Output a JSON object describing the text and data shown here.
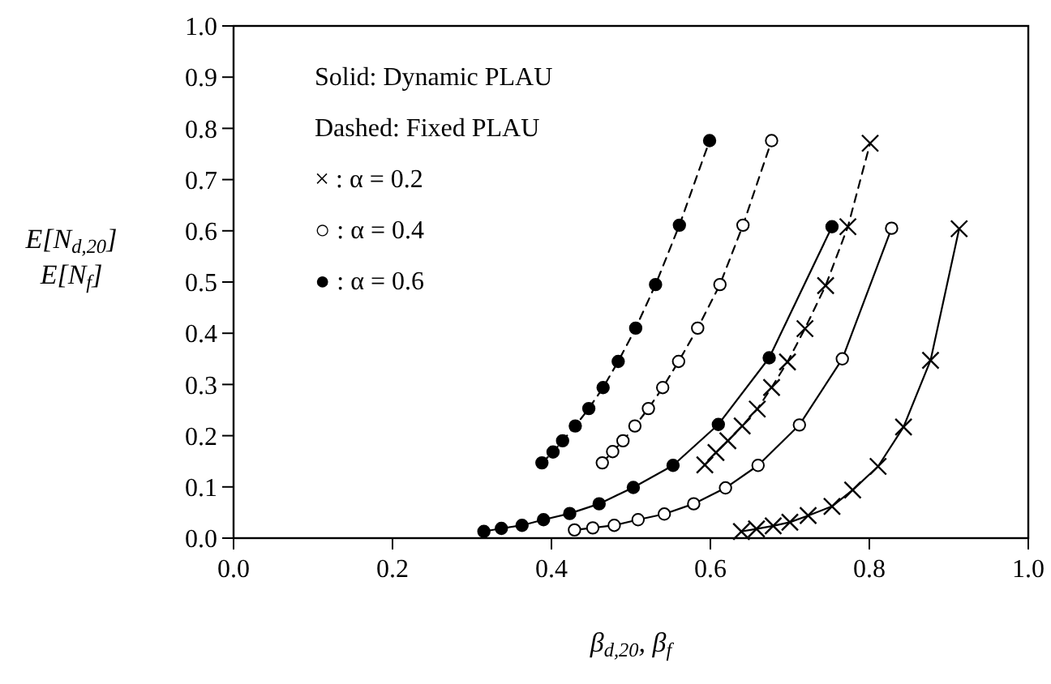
{
  "chart_data": {
    "type": "line",
    "xlabel": "β$_{d,20}$, β$_{f}$",
    "ylabel": "E[N$_{d,20}$]\nE[N$_{f}$]",
    "xlim": [
      0,
      1
    ],
    "xticks": [
      {
        "value": 0,
        "label": "0.0"
      },
      {
        "value": 0.2,
        "label": "0.2"
      },
      {
        "value": 0.4,
        "label": "0.4"
      },
      {
        "value": 0.6,
        "label": "0.6"
      },
      {
        "value": 0.8,
        "label": "0.8"
      },
      {
        "value": 1,
        "label": "1.0"
      }
    ],
    "ylim": [
      0,
      1
    ],
    "yticks": [
      {
        "value": 0,
        "label": "0.0"
      },
      {
        "value": 0.1,
        "label": "0.1"
      },
      {
        "value": 0.2,
        "label": "0.2"
      },
      {
        "value": 0.3,
        "label": "0.3"
      },
      {
        "value": 0.4,
        "label": "0.4"
      },
      {
        "value": 0.5,
        "label": "0.5"
      },
      {
        "value": 0.6,
        "label": "0.6"
      },
      {
        "value": 0.7,
        "label": "0.7"
      },
      {
        "value": 0.8,
        "label": "0.8"
      },
      {
        "value": 0.9,
        "label": "0.9"
      },
      {
        "value": 1,
        "label": "1.0"
      }
    ],
    "grid": false,
    "annotations": [
      "Solid: Dynamic PLAU",
      "Dashed: Fixed PLAU",
      "× : α = 0.2",
      "○ : α = 0.4",
      "● : α = 0.6"
    ],
    "series": [
      {
        "color": "#000000",
        "marker": "cross",
        "line_style": "solid",
        "x": [
          0.639,
          0.658,
          0.679,
          0.7,
          0.723,
          0.753,
          0.779,
          0.811,
          0.843,
          0.877,
          0.913
        ],
        "values": [
          0.013,
          0.018,
          0.024,
          0.031,
          0.044,
          0.062,
          0.094,
          0.14,
          0.217,
          0.347,
          0.604
        ]
      },
      {
        "color": "#000000",
        "colors": [
          "#ffffff",
          "#ffffff",
          "#ffffff",
          "#ffffff",
          "#ffffff",
          "#ffffff",
          "#ffffff",
          "#ffffff",
          "#ffffff",
          "#ffffff",
          "#ffffff"
        ],
        "marker": "circle",
        "line_style": "solid",
        "x": [
          0.429,
          0.452,
          0.479,
          0.509,
          0.542,
          0.579,
          0.619,
          0.66,
          0.712,
          0.766,
          0.828
        ],
        "values": [
          0.016,
          0.02,
          0.025,
          0.036,
          0.047,
          0.067,
          0.098,
          0.142,
          0.221,
          0.35,
          0.605
        ]
      },
      {
        "color": "#000000",
        "marker": "circle",
        "line_style": "solid",
        "x": [
          0.315,
          0.337,
          0.363,
          0.39,
          0.423,
          0.46,
          0.503,
          0.553,
          0.61,
          0.674,
          0.753
        ],
        "values": [
          0.013,
          0.019,
          0.025,
          0.036,
          0.048,
          0.067,
          0.099,
          0.142,
          0.222,
          0.352,
          0.608
        ]
      },
      {
        "color": "#000000",
        "marker": "cross",
        "line_style": "dashed",
        "x": [
          0.593,
          0.607,
          0.622,
          0.64,
          0.659,
          0.677,
          0.697,
          0.719,
          0.745,
          0.773,
          0.801
        ],
        "values": [
          0.143,
          0.167,
          0.19,
          0.219,
          0.252,
          0.294,
          0.344,
          0.409,
          0.493,
          0.608,
          0.771
        ]
      },
      {
        "color": "#000000",
        "colors": [
          "#ffffff",
          "#ffffff",
          "#ffffff",
          "#ffffff",
          "#ffffff",
          "#ffffff",
          "#ffffff",
          "#ffffff",
          "#ffffff",
          "#ffffff",
          "#ffffff"
        ],
        "marker": "circle",
        "line_style": "dashed",
        "x": [
          0.464,
          0.477,
          0.49,
          0.505,
          0.522,
          0.54,
          0.56,
          0.584,
          0.612,
          0.641,
          0.677
        ],
        "values": [
          0.147,
          0.169,
          0.19,
          0.219,
          0.253,
          0.294,
          0.345,
          0.41,
          0.495,
          0.611,
          0.776
        ]
      },
      {
        "color": "#000000",
        "marker": "circle",
        "line_style": "dashed",
        "x": [
          0.388,
          0.402,
          0.414,
          0.43,
          0.447,
          0.465,
          0.484,
          0.506,
          0.531,
          0.561,
          0.599
        ],
        "values": [
          0.147,
          0.168,
          0.19,
          0.219,
          0.253,
          0.294,
          0.345,
          0.41,
          0.495,
          0.611,
          0.776
        ]
      }
    ]
  }
}
